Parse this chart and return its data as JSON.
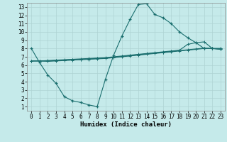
{
  "xlabel": "Humidex (Indice chaleur)",
  "bg_color": "#c5eaea",
  "grid_color": "#afd4d4",
  "line_color": "#1a6e6e",
  "x_ticks": [
    0,
    1,
    2,
    3,
    4,
    5,
    6,
    7,
    8,
    9,
    10,
    11,
    12,
    13,
    14,
    15,
    16,
    17,
    18,
    19,
    20,
    21,
    22,
    23
  ],
  "y_ticks": [
    1,
    2,
    3,
    4,
    5,
    6,
    7,
    8,
    9,
    10,
    11,
    12,
    13
  ],
  "xlim": [
    -0.5,
    23.5
  ],
  "ylim": [
    0.5,
    13.5
  ],
  "series1_x": [
    0,
    1,
    2,
    3,
    4,
    5,
    6,
    7,
    8,
    9,
    10,
    11,
    12,
    13,
    14,
    15,
    16,
    17,
    18,
    19,
    20,
    21,
    22,
    23
  ],
  "series1_y": [
    8.0,
    6.3,
    4.8,
    3.8,
    2.2,
    1.7,
    1.5,
    1.2,
    1.0,
    4.3,
    7.2,
    9.5,
    11.5,
    13.3,
    13.4,
    12.1,
    11.7,
    11.0,
    10.0,
    9.3,
    8.7,
    8.0,
    8.0,
    7.9
  ],
  "series2_x": [
    0,
    1,
    2,
    3,
    4,
    5,
    6,
    7,
    8,
    9,
    10,
    11,
    12,
    13,
    14,
    15,
    16,
    17,
    18,
    19,
    20,
    21,
    22,
    23
  ],
  "series2_y": [
    6.5,
    6.5,
    6.55,
    6.6,
    6.65,
    6.7,
    6.75,
    6.8,
    6.85,
    6.9,
    7.0,
    7.1,
    7.2,
    7.3,
    7.4,
    7.5,
    7.6,
    7.7,
    7.8,
    8.5,
    8.7,
    8.8,
    8.0,
    8.0
  ],
  "series3_x": [
    0,
    1,
    2,
    3,
    4,
    5,
    6,
    7,
    8,
    9,
    10,
    11,
    12,
    13,
    14,
    15,
    16,
    17,
    18,
    19,
    20,
    21,
    22,
    23
  ],
  "series3_y": [
    6.5,
    6.5,
    6.5,
    6.55,
    6.6,
    6.65,
    6.7,
    6.75,
    6.8,
    6.85,
    6.95,
    7.05,
    7.15,
    7.25,
    7.35,
    7.45,
    7.55,
    7.65,
    7.75,
    7.85,
    7.95,
    8.05,
    8.0,
    8.0
  ],
  "series4_x": [
    0,
    1,
    2,
    3,
    4,
    5,
    6,
    7,
    8,
    9,
    10,
    11,
    12,
    13,
    14,
    15,
    16,
    17,
    18,
    19,
    20,
    21,
    22,
    23
  ],
  "series4_y": [
    6.5,
    6.5,
    6.45,
    6.5,
    6.55,
    6.6,
    6.65,
    6.7,
    6.75,
    6.8,
    6.9,
    7.0,
    7.1,
    7.2,
    7.3,
    7.4,
    7.5,
    7.6,
    7.7,
    7.8,
    7.9,
    8.0,
    8.0,
    7.9
  ]
}
